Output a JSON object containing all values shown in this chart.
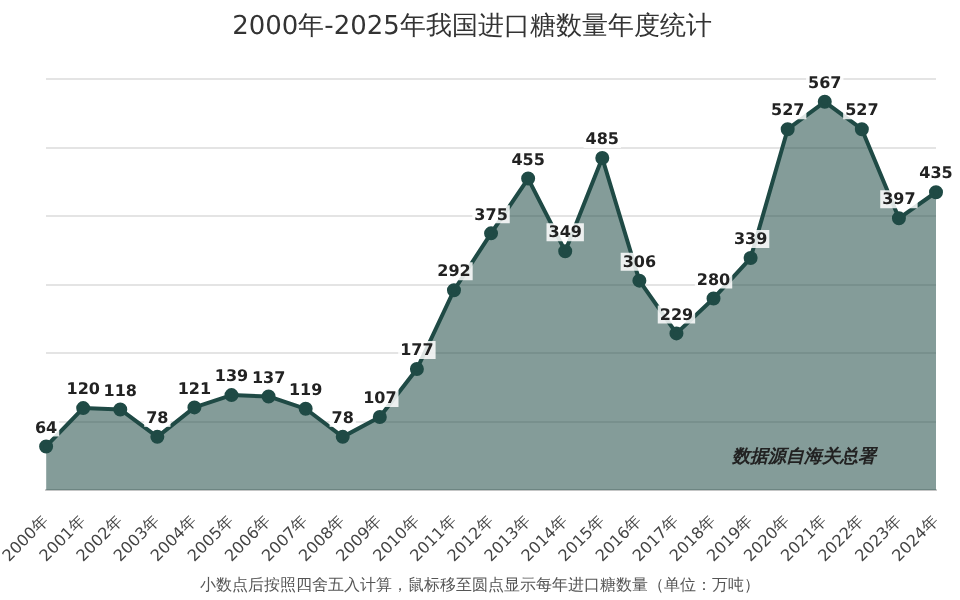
{
  "chart_data": {
    "type": "area",
    "title": "2000年-2025年我国进口糖数量年度统计",
    "categories": [
      "2000年",
      "2001年",
      "2002年",
      "2003年",
      "2004年",
      "2005年",
      "2006年",
      "2007年",
      "2008年",
      "2009年",
      "2010年",
      "2011年",
      "2012年",
      "2013年",
      "2014年",
      "2015年",
      "2016年",
      "2017年",
      "2018年",
      "2019年",
      "2020年",
      "2021年",
      "2022年",
      "2023年",
      "2024年"
    ],
    "series": [
      {
        "color": "#1f4a45",
        "values": [
          64,
          120,
          118,
          78,
          121,
          139,
          137,
          119,
          78,
          107,
          177,
          292,
          375,
          455,
          349,
          485,
          306,
          229,
          280,
          339,
          527,
          567,
          527,
          397,
          435
        ]
      }
    ],
    "ylim": [
      0,
      600
    ],
    "yticks": [
      0,
      100,
      200,
      300,
      400,
      500,
      600
    ],
    "tick_labels": "x",
    "grid": "y",
    "legend": false,
    "marker": "circle",
    "data_labels": true,
    "annotations": [
      "数据源自海关总署",
      "小数点后按照四舍五入计算，鼠标移至圆点显示每年进口糖数量（单位：万吨）"
    ]
  }
}
